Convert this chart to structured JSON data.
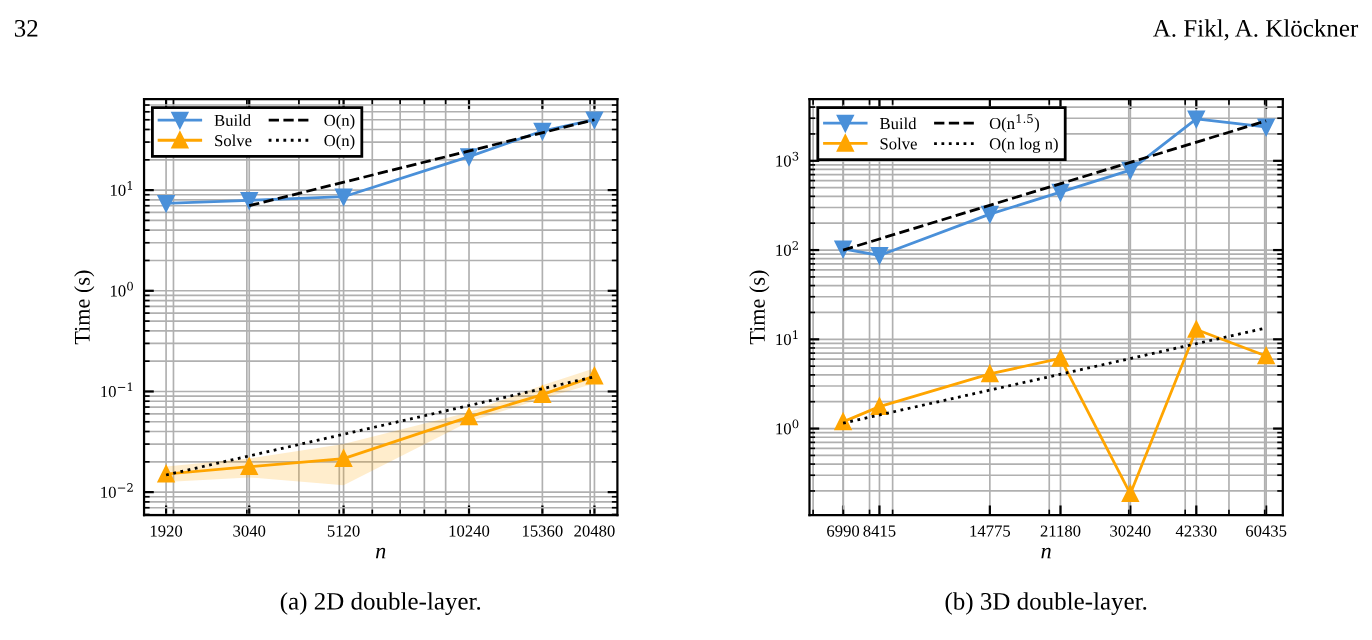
{
  "chart_data": [
    {
      "type": "line",
      "title": "(a) 2D double-layer.",
      "xlabel": "n",
      "ylabel": "Time (s)",
      "log": "xy",
      "grid": true,
      "legend": "top left",
      "annotations": [
        "32",
        "A. Fikl, A. Klöckner"
      ],
      "xlim": [
        1700,
        23250
      ],
      "ylim": [
        0.0059,
        80
      ],
      "xticks": [
        1920,
        3040,
        5120,
        10240,
        15360,
        20480
      ],
      "yticks": [
        {
          "value": 0.01,
          "label": "10$^{−2}$"
        },
        {
          "value": 0.1,
          "label": "10$^{−1}$"
        },
        {
          "value": 1,
          "label": "10$^{0}$"
        },
        {
          "value": 10,
          "label": "10$^{1}$"
        }
      ],
      "x": [
        1920,
        3040,
        5120,
        10240,
        15360,
        20480
      ],
      "series": [
        {
          "name": "Build",
          "color": "#4a90d9",
          "marker": "triangle_down",
          "line_style": "solid",
          "values": [
            7.4,
            7.9,
            8.6,
            21.5,
            38.6,
            50
          ]
        },
        {
          "name": "Solve",
          "color": "#ffa500",
          "marker": "triangle",
          "line_style": "solid",
          "values": [
            0.0151,
            0.0179,
            0.0215,
            0.056,
            0.093,
            0.142
          ],
          "lower": [
            0.0126,
            0.014,
            0.0117,
            0.05,
            0.085,
            0.12
          ],
          "upper": [
            0.018,
            0.0216,
            0.03,
            0.062,
            0.115,
            0.17
          ]
        },
        {
          "name": "O(n)",
          "color": "#000000",
          "marker": "none",
          "line_style": "dashed",
          "x": [
            3040,
            20480
          ],
          "values": [
            7.0,
            50
          ]
        },
        {
          "name": "O(n)",
          "color": "#000000",
          "marker": "none",
          "line_style": "dotted",
          "x": [
            1920,
            20480
          ],
          "values": [
            0.0148,
            0.14
          ]
        }
      ]
    },
    {
      "type": "line",
      "title": "(b) 3D double-layer.",
      "xlabel": "n",
      "ylabel": "Time (s)",
      "log": "xy",
      "grid": true,
      "legend": "top left",
      "xlim": [
        5890,
        65800
      ],
      "ylim": [
        0.107,
        4900
      ],
      "xticks": [
        6990,
        8415,
        14775,
        21180,
        30240,
        42330,
        60435
      ],
      "yticks": [
        {
          "value": 1,
          "label": "10$^{0}$"
        },
        {
          "value": 10,
          "label": "10$^{1}$"
        },
        {
          "value": 100,
          "label": "10$^{2}$"
        },
        {
          "value": 1000,
          "label": "10$^{3}$"
        }
      ],
      "x": [
        6990,
        8415,
        14775,
        21180,
        30240,
        42330,
        60435
      ],
      "series": [
        {
          "name": "Build",
          "color": "#4a90d9",
          "marker": "triangle_down",
          "line_style": "solid",
          "values": [
            103,
            87,
            253,
            445,
            787,
            2950,
            2400
          ]
        },
        {
          "name": "Solve",
          "color": "#ffa500",
          "marker": "triangle",
          "line_style": "solid",
          "values": [
            1.19,
            1.76,
            4.1,
            6.1,
            0.186,
            12.9,
            6.5
          ]
        },
        {
          "name": "O(n$^{1.5}$)",
          "color": "#000000",
          "marker": "none",
          "line_style": "dashed",
          "x": [
            6990,
            60435
          ],
          "values": [
            100,
            2800
          ]
        },
        {
          "name": "O(n log n)",
          "color": "#000000",
          "marker": "none",
          "line_style": "dotted",
          "x": [
            6990,
            60435
          ],
          "values": [
            1.15,
            13.4
          ]
        }
      ]
    }
  ]
}
